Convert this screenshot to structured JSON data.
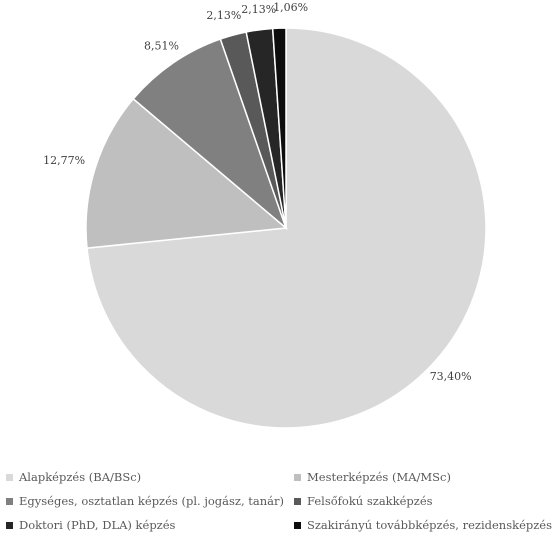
{
  "chart_data": {
    "type": "pie",
    "categories": [
      "Alapképzés (BA/BSc)",
      "Mesterképzés (MA/MSc)",
      "Egységes, osztatlan képzés (pl. jogász, tanár)",
      "Felsőfokú szakképzés",
      "Doktori (PhD, DLA) képzés",
      "Szakirányú továbbképzés, rezidensképzés"
    ],
    "values": [
      73.4,
      12.77,
      8.51,
      2.13,
      2.13,
      1.06
    ],
    "labels": [
      "73,40%",
      "12,77%",
      "8,51%",
      "2,13%",
      "2,13%",
      "1,06%"
    ],
    "colors": [
      "#d9d9d9",
      "#bfbfbf",
      "#808080",
      "#595959",
      "#262626",
      "#0d0d0d"
    ],
    "legend_position": "bottom"
  }
}
